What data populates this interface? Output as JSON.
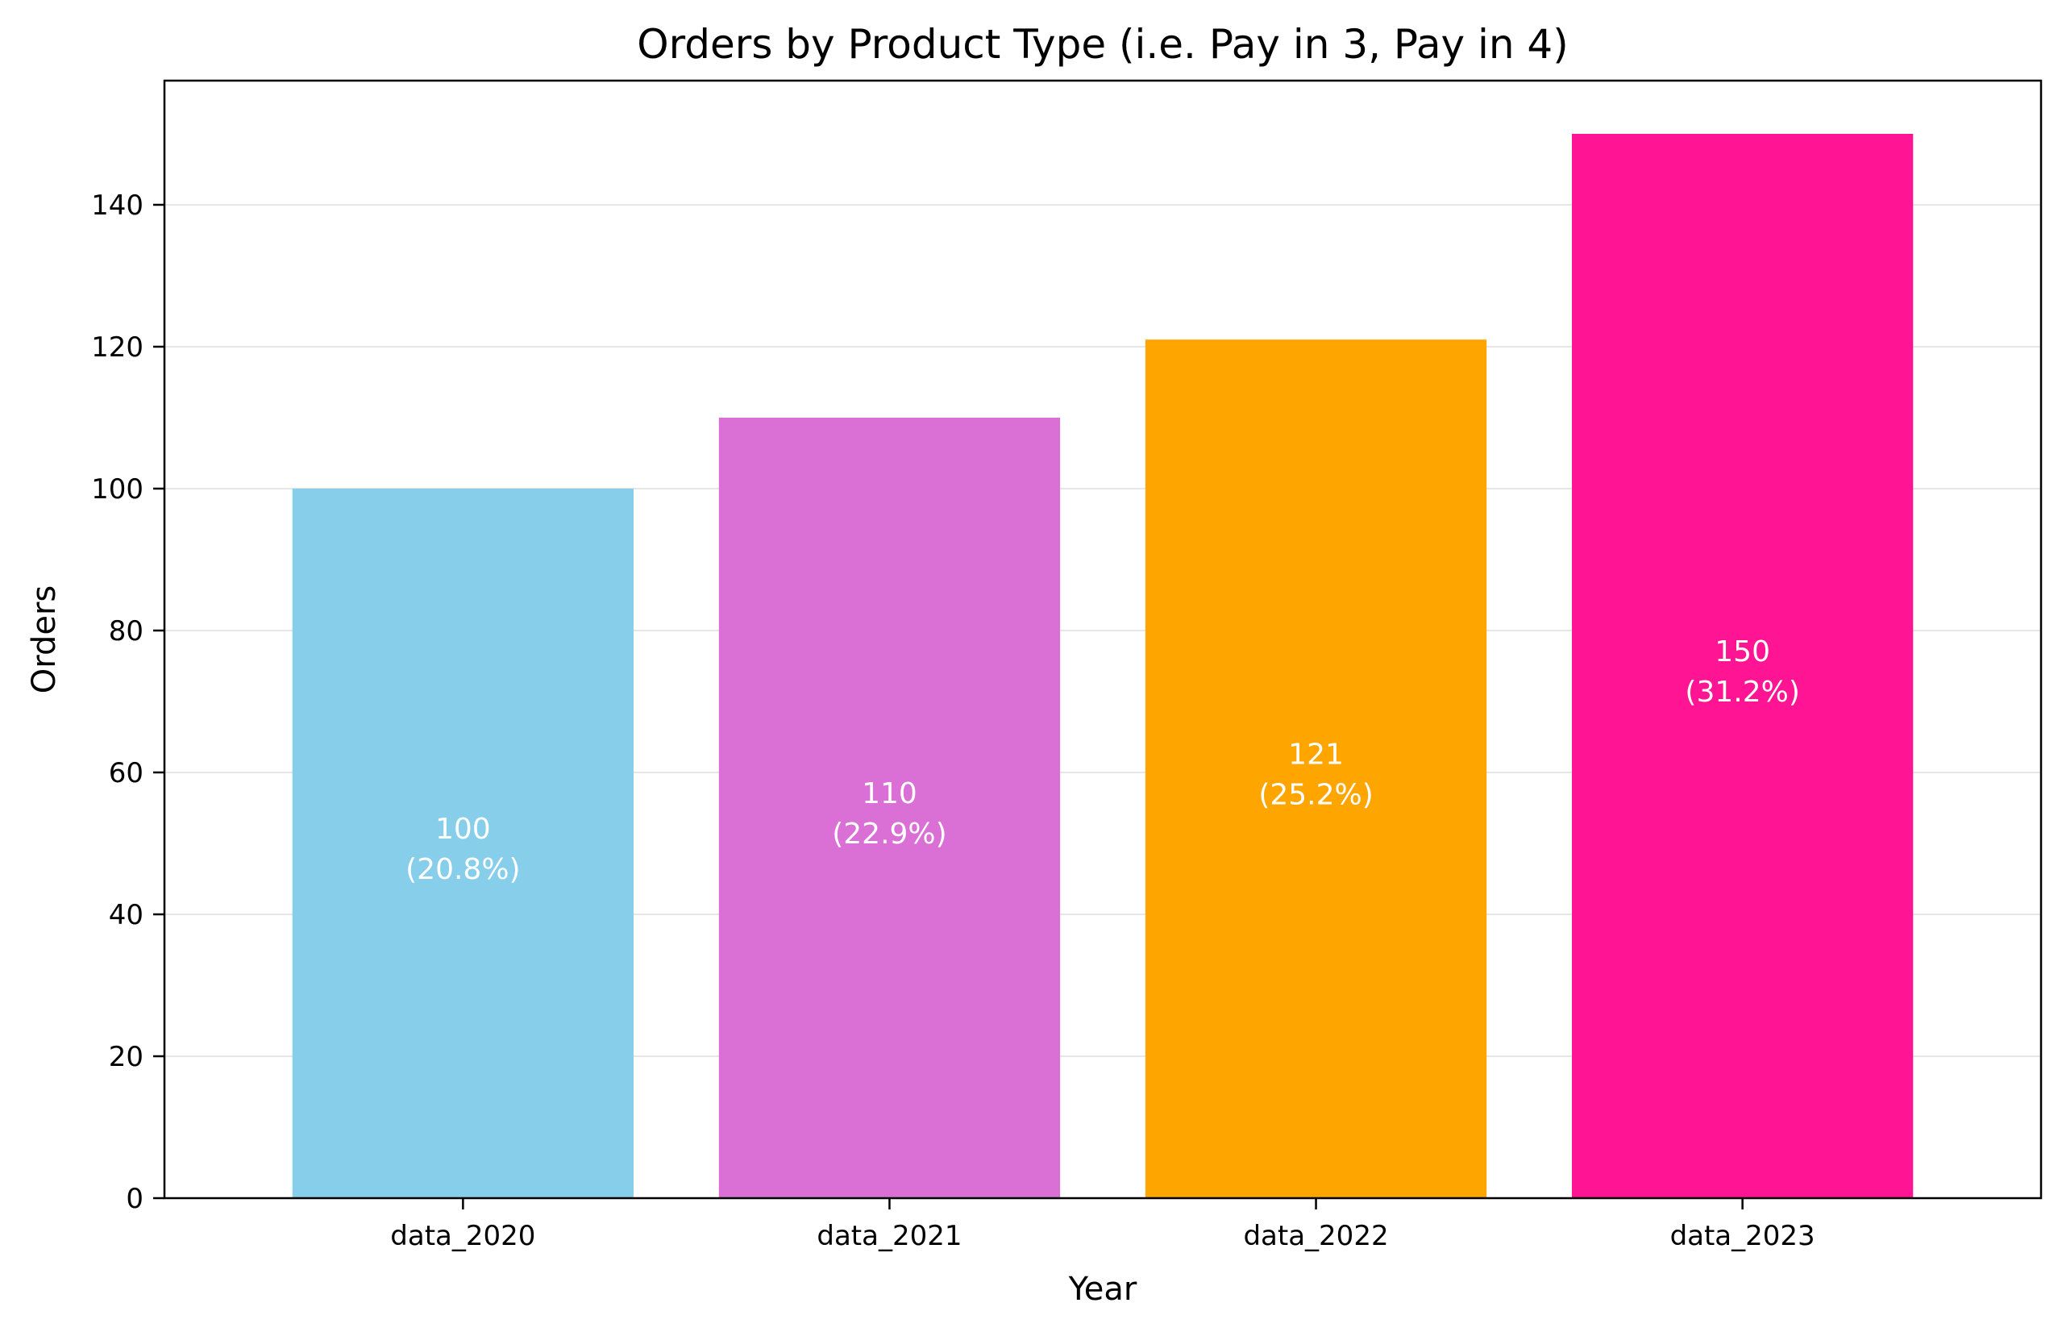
{
  "chart_data": {
    "type": "bar",
    "title": "Orders by Product Type (i.e. Pay in 3, Pay in 4)",
    "xlabel": "Year",
    "ylabel": "Orders",
    "categories": [
      "data_2020",
      "data_2021",
      "data_2022",
      "data_2023"
    ],
    "values": [
      100,
      110,
      121,
      150
    ],
    "value_labels": [
      "100",
      "110",
      "121",
      "150"
    ],
    "percent_labels": [
      "(20.8%)",
      "(22.9%)",
      "(25.2%)",
      "(31.2%)"
    ],
    "colors": [
      "#87CEEB",
      "#DA70D6",
      "#FFA500",
      "#FF1493"
    ],
    "ylim": [
      0,
      157.5
    ],
    "yticks": [
      0,
      20,
      40,
      60,
      80,
      100,
      120,
      140
    ],
    "ytick_labels": [
      "0",
      "20",
      "40",
      "60",
      "80",
      "100",
      "120",
      "140"
    ],
    "grid": "y",
    "grid_color": "#e6e6e6",
    "legend": "none"
  }
}
